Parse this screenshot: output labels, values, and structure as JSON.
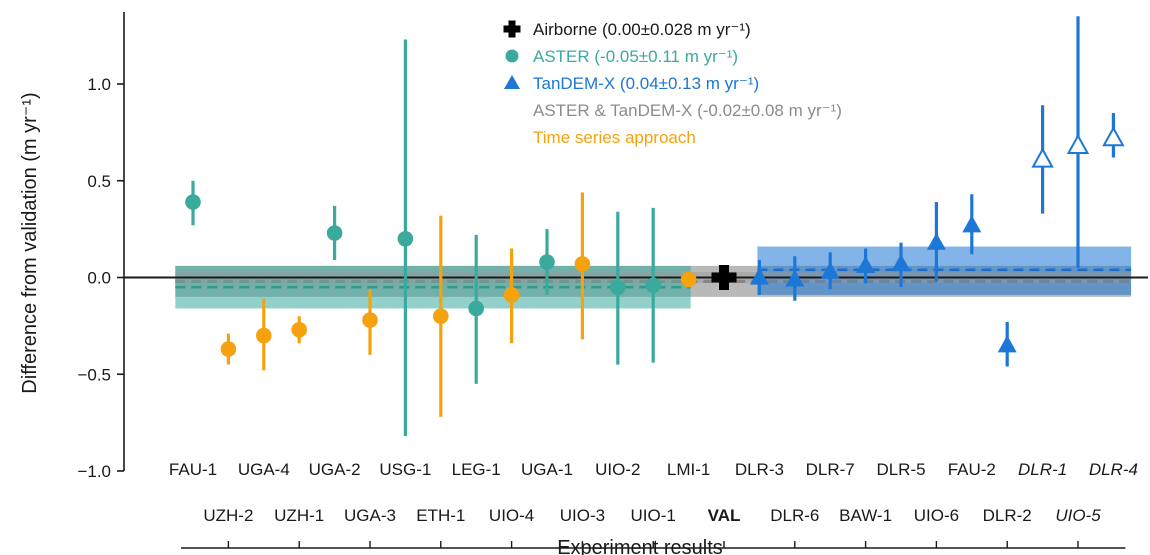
{
  "chart_data": {
    "type": "scatter",
    "xlabel": "Experiment results",
    "ylabel": "Difference from validation (m yr⁻¹)",
    "ylim": [
      -1.0,
      1.35
    ],
    "yticks": [
      -1.0,
      -0.5,
      0.0,
      0.5,
      1.0
    ],
    "ytick_labels": [
      "−1.0",
      "−0.5",
      "0.0",
      "0.5",
      "1.0"
    ],
    "legend_position": "top-center",
    "colors": {
      "aster": "#3aaa9c",
      "tandemx": "#1c77d6",
      "time_series": "#f5a20e",
      "airborne": "#000000",
      "combined": "#8c8c8c",
      "faded_label": "#9a9a9a"
    },
    "legend": [
      {
        "key": "airborne",
        "marker": "plus",
        "label": "Airborne (0.00±0.028 m yr⁻¹)"
      },
      {
        "key": "aster",
        "marker": "circle",
        "label": "ASTER (-0.05±0.11 m yr⁻¹)"
      },
      {
        "key": "tandemx",
        "marker": "triangle",
        "label": "TanDEM-X (0.04±0.13 m yr⁻¹)"
      },
      {
        "key": "combined",
        "marker": "none",
        "label": "ASTER & TanDEM-X (-0.02±0.08 m yr⁻¹)"
      },
      {
        "key": "time_series",
        "marker": "none",
        "label": "Time series approach"
      }
    ],
    "points": [
      {
        "label": "FAU-1",
        "group": "aster",
        "y": 0.39,
        "lo": 0.27,
        "hi": 0.5,
        "marker": "circle",
        "row": "top"
      },
      {
        "label": "UZH-2",
        "group": "time_series",
        "y": -0.37,
        "lo": -0.45,
        "hi": -0.29,
        "marker": "circle",
        "row": "bottom"
      },
      {
        "label": "UGA-4",
        "group": "time_series",
        "y": -0.3,
        "lo": -0.48,
        "hi": -0.11,
        "marker": "circle",
        "row": "top"
      },
      {
        "label": "UZH-1",
        "group": "time_series",
        "y": -0.27,
        "lo": -0.34,
        "hi": -0.2,
        "marker": "circle",
        "row": "bottom"
      },
      {
        "label": "UGA-2",
        "group": "aster",
        "y": 0.23,
        "lo": 0.09,
        "hi": 0.37,
        "marker": "circle",
        "row": "top"
      },
      {
        "label": "UGA-3",
        "group": "time_series",
        "y": -0.22,
        "lo": -0.4,
        "hi": -0.06,
        "marker": "circle",
        "row": "bottom"
      },
      {
        "label": "USG-1",
        "group": "aster",
        "y": 0.2,
        "lo": -0.82,
        "hi": 1.23,
        "marker": "circle",
        "row": "top"
      },
      {
        "label": "ETH-1",
        "group": "time_series",
        "y": -0.2,
        "lo": -0.72,
        "hi": 0.32,
        "marker": "circle",
        "row": "bottom"
      },
      {
        "label": "LEG-1",
        "group": "aster",
        "y": -0.16,
        "lo": -0.55,
        "hi": 0.22,
        "marker": "circle",
        "row": "top"
      },
      {
        "label": "UIO-4",
        "group": "time_series",
        "y": -0.09,
        "lo": -0.34,
        "hi": 0.15,
        "marker": "circle",
        "row": "bottom"
      },
      {
        "label": "UGA-1",
        "group": "aster",
        "y": 0.08,
        "lo": -0.09,
        "hi": 0.25,
        "marker": "circle",
        "row": "top"
      },
      {
        "label": "UIO-3",
        "group": "time_series",
        "y": 0.07,
        "lo": -0.32,
        "hi": 0.44,
        "marker": "circle",
        "row": "bottom"
      },
      {
        "label": "UIO-2",
        "group": "aster",
        "y": -0.05,
        "lo": -0.45,
        "hi": 0.34,
        "marker": "circle",
        "row": "top"
      },
      {
        "label": "UIO-1",
        "group": "aster",
        "y": -0.04,
        "lo": -0.44,
        "hi": 0.36,
        "marker": "circle",
        "row": "bottom"
      },
      {
        "label": "LMI-1",
        "group": "time_series",
        "y": -0.01,
        "lo": -0.01,
        "hi": -0.01,
        "marker": "circle",
        "row": "top"
      },
      {
        "label": "VAL",
        "group": "airborne",
        "y": 0.0,
        "lo": 0.0,
        "hi": 0.0,
        "marker": "plus",
        "row": "bottom",
        "bold": true
      },
      {
        "label": "DLR-3",
        "group": "tandemx",
        "y": 0.0,
        "lo": -0.09,
        "hi": 0.09,
        "marker": "triangle",
        "row": "top"
      },
      {
        "label": "DLR-6",
        "group": "tandemx",
        "y": -0.01,
        "lo": -0.12,
        "hi": 0.11,
        "marker": "triangle",
        "row": "bottom"
      },
      {
        "label": "DLR-7",
        "group": "tandemx",
        "y": 0.03,
        "lo": -0.06,
        "hi": 0.13,
        "marker": "triangle",
        "row": "top"
      },
      {
        "label": "BAW-1",
        "group": "tandemx",
        "y": 0.06,
        "lo": -0.03,
        "hi": 0.15,
        "marker": "triangle",
        "row": "bottom"
      },
      {
        "label": "DLR-5",
        "group": "tandemx",
        "y": 0.07,
        "lo": -0.05,
        "hi": 0.18,
        "marker": "triangle",
        "row": "top"
      },
      {
        "label": "UIO-6",
        "group": "tandemx",
        "y": 0.18,
        "lo": -0.02,
        "hi": 0.39,
        "marker": "triangle",
        "row": "bottom"
      },
      {
        "label": "FAU-2",
        "group": "tandemx",
        "y": 0.27,
        "lo": 0.12,
        "hi": 0.43,
        "marker": "triangle",
        "row": "top"
      },
      {
        "label": "DLR-2",
        "group": "tandemx",
        "y": -0.35,
        "lo": -0.46,
        "hi": -0.23,
        "marker": "triangle",
        "row": "bottom"
      },
      {
        "label": "DLR-1",
        "group": "tandemx",
        "y": 0.61,
        "lo": 0.33,
        "hi": 0.89,
        "marker": "triangle-open",
        "row": "top",
        "faded": true
      },
      {
        "label": "UIO-5",
        "group": "tandemx",
        "y": 0.68,
        "lo": 0.05,
        "hi": 1.35,
        "marker": "triangle-open",
        "row": "bottom",
        "faded": true
      },
      {
        "label": "DLR-4",
        "group": "tandemx",
        "y": 0.72,
        "lo": 0.62,
        "hi": 0.85,
        "marker": "triangle-open",
        "row": "top",
        "faded": true
      }
    ],
    "bands": [
      {
        "group": "aster",
        "x_from": "FAU-1",
        "x_to": "LMI-1",
        "lo": -0.16,
        "hi": 0.06,
        "mean": -0.05
      },
      {
        "group": "tandemx",
        "x_from": "DLR-3",
        "x_to": "DLR-4",
        "lo": -0.09,
        "hi": 0.16,
        "mean": 0.04
      },
      {
        "group": "combined",
        "x_from": "FAU-1",
        "x_to": "DLR-4",
        "lo": -0.1,
        "hi": 0.06,
        "mean": -0.02
      },
      {
        "group": "airborne",
        "x_from": "FAU-1",
        "x_to": "DLR-4",
        "lo": -0.028,
        "hi": 0.028,
        "mean": 0.0
      }
    ]
  }
}
